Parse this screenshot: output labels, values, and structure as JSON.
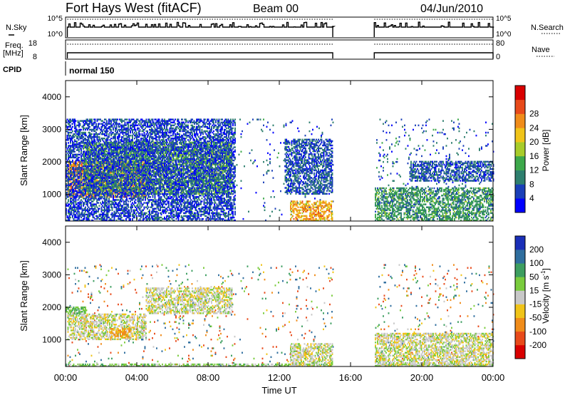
{
  "header": {
    "title": "Fort Hays West (fitACF)",
    "beam": "Beam 00",
    "date": "04/Jun/2010"
  },
  "strip": {
    "nsky_label": "N.Sky",
    "nsearch_label": "N.Search",
    "nsky_ticks": [
      "10^5",
      "10^0"
    ],
    "nsearch_ticks": [
      "10^5",
      "10^0"
    ],
    "freq_label_1": "Freq.",
    "freq_label_2": "[MHz]",
    "freq_ticks": [
      "18",
      "8"
    ],
    "nave_label": "Nave",
    "nave_ticks": [
      "80",
      "0"
    ],
    "cpid_label": "CPID",
    "cpid_value": "normal 150"
  },
  "axes": {
    "ylabel": "Slant Range [km]",
    "xlabel": "Time UT",
    "y_ticks": [
      "1000",
      "2000",
      "3000",
      "4000"
    ],
    "x_ticks": [
      "00:00",
      "04:00",
      "08:00",
      "12:00",
      "16:00",
      "20:00",
      "00:00"
    ]
  },
  "colorbars": {
    "power": {
      "label": "Power [dB]",
      "ticks": [
        "4",
        "8",
        "12",
        "16",
        "20",
        "24",
        "28"
      ],
      "colors": [
        "#0000ff",
        "#1a3fb8",
        "#2e7f6e",
        "#3da84b",
        "#a8cc2a",
        "#f0c419",
        "#f08c1a",
        "#e84a1a",
        "#d90000"
      ]
    },
    "velocity": {
      "label": "Velocity [m s",
      "label_sup": "-1",
      "label_end": "]",
      "ticks": [
        "200",
        "100",
        "50",
        "15",
        "-15",
        "-50",
        "-100",
        "-200"
      ],
      "colors": [
        "#1a2fb8",
        "#2f6e9e",
        "#3d9e60",
        "#7acc3d",
        "#c8c8c8",
        "#f0c419",
        "#f08c1a",
        "#e84a1a",
        "#d90000"
      ]
    }
  },
  "chart_data": {
    "type": "heatmap",
    "title": "Fort Hays West (fitACF)",
    "xlabel": "Time UT",
    "ylabel": "Slant Range [km]",
    "xlim": [
      "00:00",
      "24:00"
    ],
    "ylim": [
      180,
      4500
    ],
    "data_gap": [
      "15:00",
      "17:20"
    ],
    "panels": [
      {
        "name": "Power",
        "unit": "dB",
        "range": [
          0,
          30
        ],
        "regions": [
          {
            "t_start": 0.1,
            "t_end": 4.5,
            "range_km": [
              900,
              2000
            ],
            "dominant_value": 22
          },
          {
            "t_start": 1.0,
            "t_end": 9.3,
            "range_km": [
              1000,
              2600
            ],
            "dominant_value": 12
          },
          {
            "t_start": 0.0,
            "t_end": 9.5,
            "range_km": [
              180,
              3300
            ],
            "dominant_value": 5
          },
          {
            "t_start": 12.6,
            "t_end": 15.0,
            "range_km": [
              180,
              800
            ],
            "dominant_value": 20
          },
          {
            "t_start": 12.3,
            "t_end": 15.0,
            "range_km": [
              1000,
              2700
            ],
            "dominant_value": 6
          },
          {
            "t_start": 17.3,
            "t_end": 24.0,
            "range_km": [
              180,
              1200
            ],
            "dominant_value": 10
          },
          {
            "t_start": 19.3,
            "t_end": 24.0,
            "range_km": [
              1400,
              2000
            ],
            "dominant_value": 6
          }
        ]
      },
      {
        "name": "Velocity",
        "unit": "m/s",
        "range": [
          -200,
          200
        ],
        "regions": [
          {
            "t_start": 0.1,
            "t_end": 4.5,
            "range_km": [
              1000,
              1800
            ],
            "dominant_value": 0
          },
          {
            "t_start": 2.5,
            "t_end": 3.6,
            "range_km": [
              1050,
              1350
            ],
            "dominant_value": -60
          },
          {
            "t_start": 0.0,
            "t_end": 1.2,
            "range_km": [
              1800,
              2000
            ],
            "dominant_value": 40
          },
          {
            "t_start": 4.5,
            "t_end": 9.3,
            "range_km": [
              1800,
              2600
            ],
            "dominant_value": 0
          },
          {
            "t_start": 0.0,
            "t_end": 24.0,
            "range_km": [
              180,
              260
            ],
            "dominant_value": 30
          },
          {
            "t_start": 12.6,
            "t_end": 15.0,
            "range_km": [
              180,
              900
            ],
            "dominant_value": 0
          },
          {
            "t_start": 17.3,
            "t_end": 24.0,
            "range_km": [
              180,
              1200
            ],
            "dominant_value": 0
          }
        ]
      }
    ]
  }
}
